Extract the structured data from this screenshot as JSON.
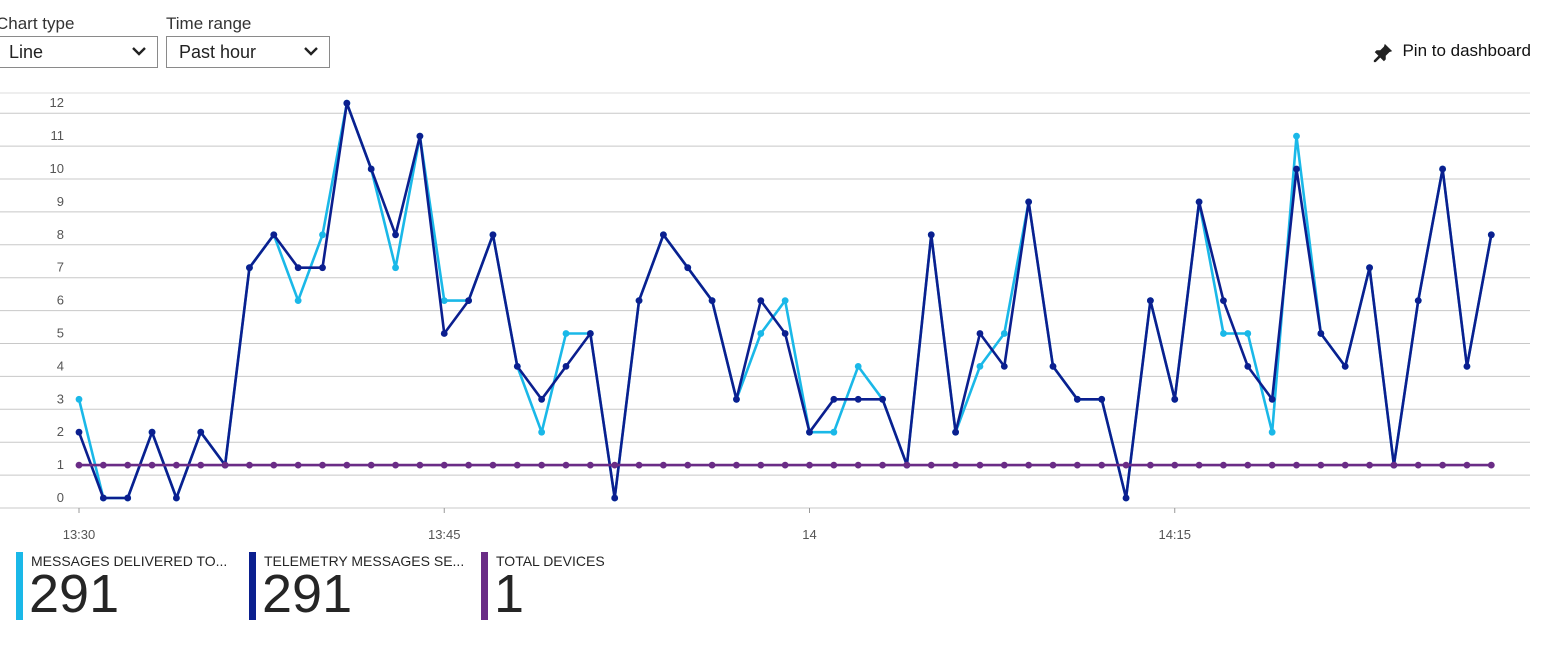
{
  "controls": {
    "chart_type_label": "Chart type",
    "chart_type_value": "Line",
    "time_range_label": "Time range",
    "time_range_value": "Past hour",
    "pin_label": "Pin to dashboard"
  },
  "colors": {
    "messages_delivered": "#1ab8e8",
    "telemetry_messages": "#0b1f8f",
    "total_devices": "#6a2c86",
    "gridline": "#c8c8c8"
  },
  "legend": [
    {
      "name": "MESSAGES DELIVERED TO...",
      "value": "291",
      "color_key": "messages_delivered"
    },
    {
      "name": "TELEMETRY MESSAGES SE...",
      "value": "291",
      "color_key": "telemetry_messages"
    },
    {
      "name": "TOTAL DEVICES",
      "value": "1",
      "color_key": "total_devices"
    }
  ],
  "chart_data": {
    "type": "line",
    "x_unit": "minute index from 13:30",
    "x_ticks": [
      {
        "x": 0,
        "label": "13:30"
      },
      {
        "x": 15,
        "label": "13:45"
      },
      {
        "x": 30,
        "label": "14"
      },
      {
        "x": 45,
        "label": "14:15"
      }
    ],
    "y_ticks": [
      0,
      1,
      2,
      3,
      4,
      5,
      6,
      7,
      8,
      9,
      10,
      11,
      12
    ],
    "ylim": [
      0,
      12.3
    ],
    "grid": true,
    "series": [
      {
        "name": "MESSAGES DELIVERED TO...",
        "color_key": "messages_delivered",
        "values": [
          3,
          0,
          0,
          2,
          0,
          2,
          1,
          7,
          8,
          6,
          8,
          12,
          10,
          7,
          11,
          6,
          6,
          8,
          4,
          2,
          5,
          5,
          0,
          6,
          8,
          7,
          6,
          3,
          5,
          6,
          2,
          2,
          4,
          3,
          1,
          8,
          2,
          4,
          5,
          9,
          4,
          3,
          3,
          0,
          6,
          3,
          9,
          5,
          5,
          2,
          11,
          5,
          4,
          7,
          1,
          6,
          10,
          4,
          8
        ]
      },
      {
        "name": "TELEMETRY MESSAGES SE...",
        "color_key": "telemetry_messages",
        "values": [
          2,
          0,
          0,
          2,
          0,
          2,
          1,
          7,
          8,
          7,
          7,
          12,
          10,
          8,
          11,
          5,
          6,
          8,
          4,
          3,
          4,
          5,
          0,
          6,
          8,
          7,
          6,
          3,
          6,
          5,
          2,
          3,
          3,
          3,
          1,
          8,
          2,
          5,
          4,
          9,
          4,
          3,
          3,
          0,
          6,
          3,
          9,
          6,
          4,
          3,
          10,
          5,
          4,
          7,
          1,
          6,
          10,
          4,
          8
        ]
      },
      {
        "name": "TOTAL DEVICES",
        "color_key": "total_devices",
        "values": [
          1,
          1,
          1,
          1,
          1,
          1,
          1,
          1,
          1,
          1,
          1,
          1,
          1,
          1,
          1,
          1,
          1,
          1,
          1,
          1,
          1,
          1,
          1,
          1,
          1,
          1,
          1,
          1,
          1,
          1,
          1,
          1,
          1,
          1,
          1,
          1,
          1,
          1,
          1,
          1,
          1,
          1,
          1,
          1,
          1,
          1,
          1,
          1,
          1,
          1,
          1,
          1,
          1,
          1,
          1,
          1,
          1,
          1,
          1
        ]
      }
    ]
  }
}
